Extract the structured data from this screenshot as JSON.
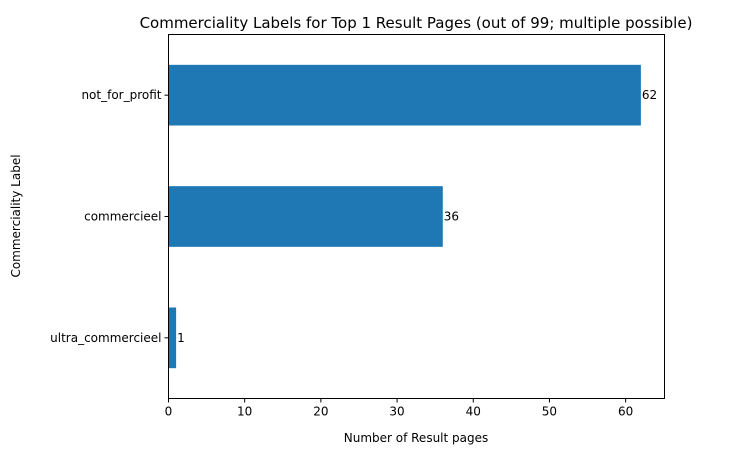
{
  "chart_data": {
    "type": "bar",
    "orientation": "horizontal",
    "title": "Commerciality Labels for Top 1 Result Pages (out of 99; multiple possible)",
    "xlabel": "Number of Result pages",
    "ylabel": "Commerciality Label",
    "categories": [
      "not_for_profit",
      "commercieel",
      "ultra_commercieel"
    ],
    "values": [
      62,
      36,
      1
    ],
    "data_labels": [
      "62",
      "36",
      "1"
    ],
    "xlim": [
      0,
      65.1
    ],
    "xticks": [
      0,
      10,
      20,
      30,
      40,
      50,
      60
    ],
    "xtick_labels": [
      "0",
      "10",
      "20",
      "30",
      "40",
      "50",
      "60"
    ],
    "bar_color": "#1f77b4",
    "grid": false,
    "legend": "none"
  }
}
